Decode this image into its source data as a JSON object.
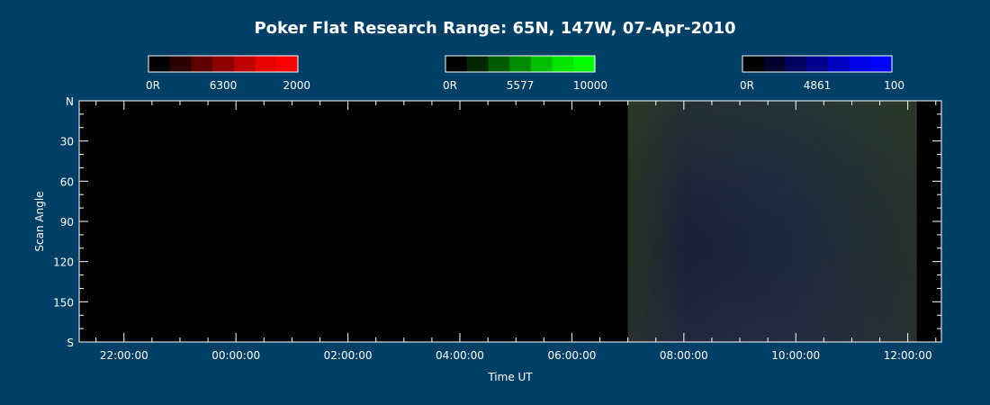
{
  "chart_data": {
    "type": "heatmap",
    "title": "Poker Flat Research Range: 65N, 147W, 07-Apr-2010",
    "xlabel": "Time UT",
    "ylabel": "Scan Angle",
    "x_ticks": [
      "22:00:00",
      "00:00:00",
      "02:00:00",
      "04:00:00",
      "06:00:00",
      "08:00:00",
      "10:00:00",
      "12:00:00"
    ],
    "y_ticks": [
      "N",
      "30",
      "60",
      "90",
      "120",
      "150",
      "S"
    ],
    "colorbars": [
      {
        "wavelength": "6300",
        "min_label": "0R",
        "max_label": "2000",
        "colors": [
          "#000000",
          "#2b0000",
          "#5e0000",
          "#8f0000",
          "#c00000",
          "#e60000",
          "#ff0000"
        ]
      },
      {
        "wavelength": "5577",
        "min_label": "0R",
        "max_label": "10000",
        "colors": [
          "#000000",
          "#002700",
          "#005a00",
          "#008c00",
          "#00bf00",
          "#00e600",
          "#00ff00"
        ]
      },
      {
        "wavelength": "4861",
        "min_label": "0R",
        "max_label": "100",
        "colors": [
          "#000000",
          "#00002b",
          "#00005e",
          "#00008f",
          "#0000c0",
          "#0000e6",
          "#0000ff"
        ]
      }
    ],
    "data_start": "07:00:00",
    "data_end": "12:00:00"
  }
}
